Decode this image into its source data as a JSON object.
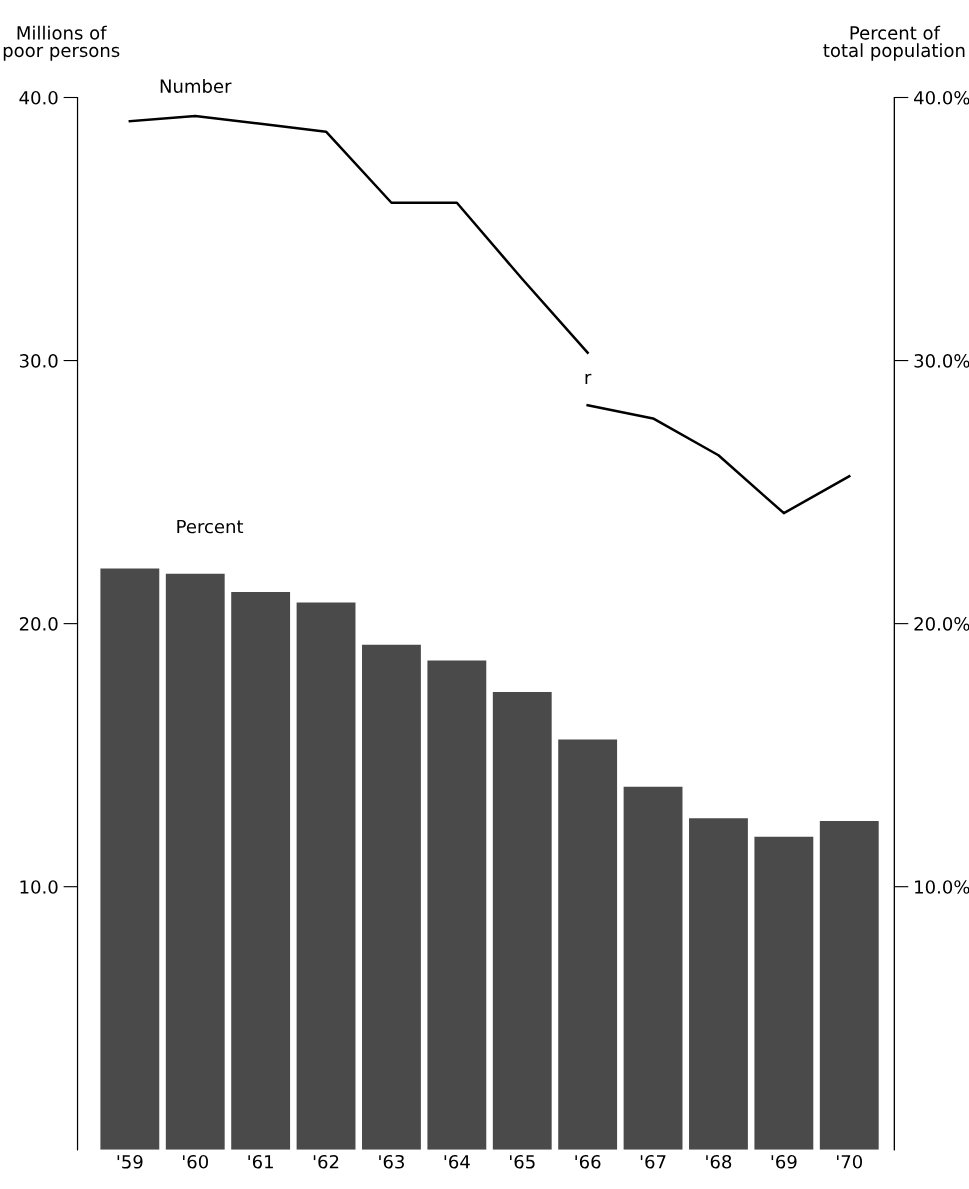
{
  "chart_data": {
    "type": "bar",
    "ylabel": "Millions of\npoor persons",
    "y2label": "Percent of\ntotal population",
    "categories": [
      "'59",
      "'60",
      "'61",
      "'62",
      "'63",
      "'64",
      "'65",
      "'66",
      "'67",
      "'68",
      "'69",
      "'70"
    ],
    "series": [
      {
        "name": "Percent",
        "color": "#4a4a4a",
        "values": [
          22.1,
          21.9,
          21.2,
          20.8,
          19.2,
          18.6,
          17.4,
          15.6,
          13.8,
          12.6,
          11.9,
          12.5
        ]
      },
      {
        "name": "Number",
        "type": "line",
        "color": "#000000",
        "values": [
          39.1,
          39.3,
          39.0,
          38.7,
          36.0,
          36.0,
          33.1,
          30.3,
          null,
          null,
          null,
          null
        ]
      },
      {
        "type": "line",
        "color": "#000000",
        "values": [
          null,
          null,
          null,
          null,
          null,
          null,
          null,
          28.3,
          27.8,
          26.4,
          24.2,
          25.6
        ]
      }
    ],
    "ylim": [
      0,
      40
    ],
    "yticks": [
      {
        "value": 10,
        "label": "10.0"
      },
      {
        "value": 20,
        "label": "20.0"
      },
      {
        "value": 30,
        "label": "30.0"
      },
      {
        "value": 40,
        "label": "40.0"
      }
    ],
    "y2lim": [
      0,
      40
    ],
    "y2ticks": [
      {
        "value": 10,
        "label": "10.0%"
      },
      {
        "value": 20,
        "label": "20.0%"
      },
      {
        "value": 30,
        "label": "30.0%"
      },
      {
        "value": 40,
        "label": "40.0%"
      }
    ],
    "annotations": [
      "r"
    ],
    "grid": false,
    "legend": false
  }
}
